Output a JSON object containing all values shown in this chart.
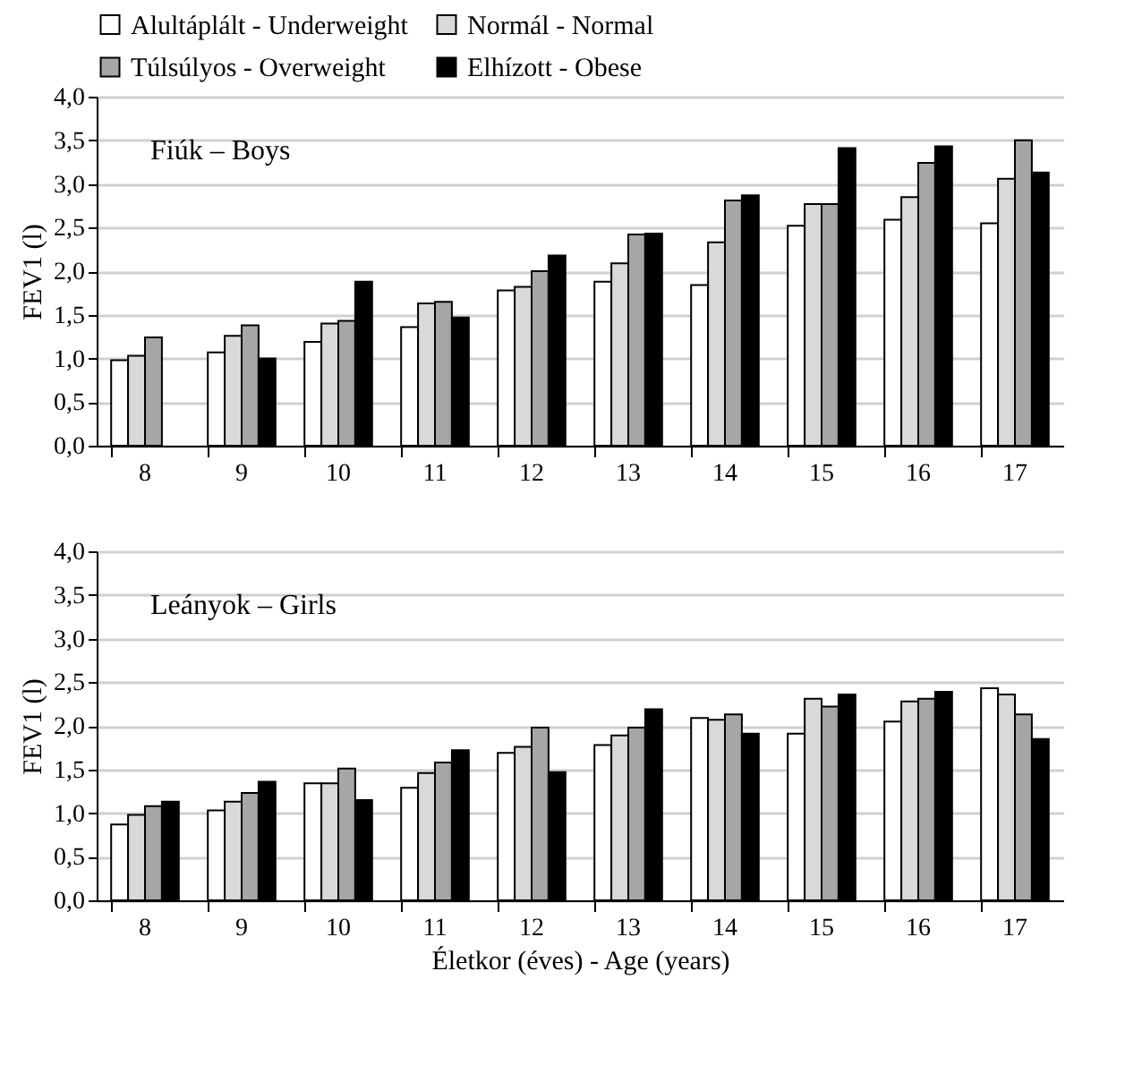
{
  "chart_data": [
    {
      "type": "bar",
      "title": "Fiúk – Boys",
      "ylabel": "FEV1 (l)",
      "legend": "top",
      "grid": "y",
      "categories": [
        "8",
        "9",
        "10",
        "11",
        "12",
        "13",
        "14",
        "15",
        "16",
        "17"
      ],
      "ylim": [
        0,
        4
      ],
      "yticks": [
        {
          "value": 0,
          "label": "0,0"
        },
        {
          "value": 0.5,
          "label": "0,5"
        },
        {
          "value": 1,
          "label": "1,0"
        },
        {
          "value": 1.5,
          "label": "1,5"
        },
        {
          "value": 2,
          "label": "2,0"
        },
        {
          "value": 2.5,
          "label": "2,5"
        },
        {
          "value": 3,
          "label": "3,0"
        },
        {
          "value": 3.5,
          "label": "3,5"
        },
        {
          "value": 4,
          "label": "4,0"
        }
      ],
      "series": [
        {
          "name": "Alultáplált - Underweight",
          "color": "#ffffff",
          "values": [
            0.98,
            1.07,
            1.19,
            1.36,
            1.78,
            1.88,
            1.84,
            2.52,
            2.59,
            2.55
          ]
        },
        {
          "name": "Normál - Normal",
          "color": "#d9d9d9",
          "values": [
            1.03,
            1.26,
            1.4,
            1.63,
            1.82,
            2.09,
            2.33,
            2.77,
            2.85,
            3.06
          ]
        },
        {
          "name": "Túlsúlyos - Overweight",
          "color": "#a6a6a6",
          "values": [
            1.24,
            1.38,
            1.43,
            1.65,
            2.0,
            2.42,
            2.81,
            2.77,
            3.24,
            3.5
          ]
        },
        {
          "name": "Elhízott - Obese",
          "color": "#000000",
          "values": [
            null,
            1.0,
            1.88,
            1.47,
            2.18,
            2.43,
            2.87,
            3.41,
            3.43,
            3.13
          ]
        }
      ]
    },
    {
      "type": "bar",
      "title": "Leányok – Girls",
      "ylabel": "FEV1 (l)",
      "xlabel": "Életkor (éves) - Age (years)",
      "grid": "y",
      "categories": [
        "8",
        "9",
        "10",
        "11",
        "12",
        "13",
        "14",
        "15",
        "16",
        "17"
      ],
      "ylim": [
        0,
        4
      ],
      "yticks": [
        {
          "value": 0,
          "label": "0,0"
        },
        {
          "value": 0.5,
          "label": "0,5"
        },
        {
          "value": 1,
          "label": "1,0"
        },
        {
          "value": 1.5,
          "label": "1,5"
        },
        {
          "value": 2,
          "label": "2,0"
        },
        {
          "value": 2.5,
          "label": "2,5"
        },
        {
          "value": 3,
          "label": "3,0"
        },
        {
          "value": 3.5,
          "label": "3,5"
        },
        {
          "value": 4,
          "label": "4,0"
        }
      ],
      "series": [
        {
          "color": "#ffffff",
          "values": [
            0.87,
            1.03,
            1.34,
            1.29,
            1.69,
            1.78,
            2.09,
            1.91,
            2.05,
            2.43
          ]
        },
        {
          "color": "#d9d9d9",
          "values": [
            0.98,
            1.13,
            1.34,
            1.46,
            1.76,
            1.89,
            2.07,
            2.31,
            2.28,
            2.36
          ]
        },
        {
          "color": "#a6a6a6",
          "values": [
            1.08,
            1.23,
            1.51,
            1.58,
            1.98,
            1.98,
            2.13,
            2.22,
            2.31,
            2.13
          ]
        },
        {
          "color": "#000000",
          "values": [
            1.13,
            1.36,
            1.15,
            1.72,
            1.47,
            2.19,
            1.91,
            2.36,
            2.39,
            1.85
          ]
        }
      ]
    }
  ]
}
